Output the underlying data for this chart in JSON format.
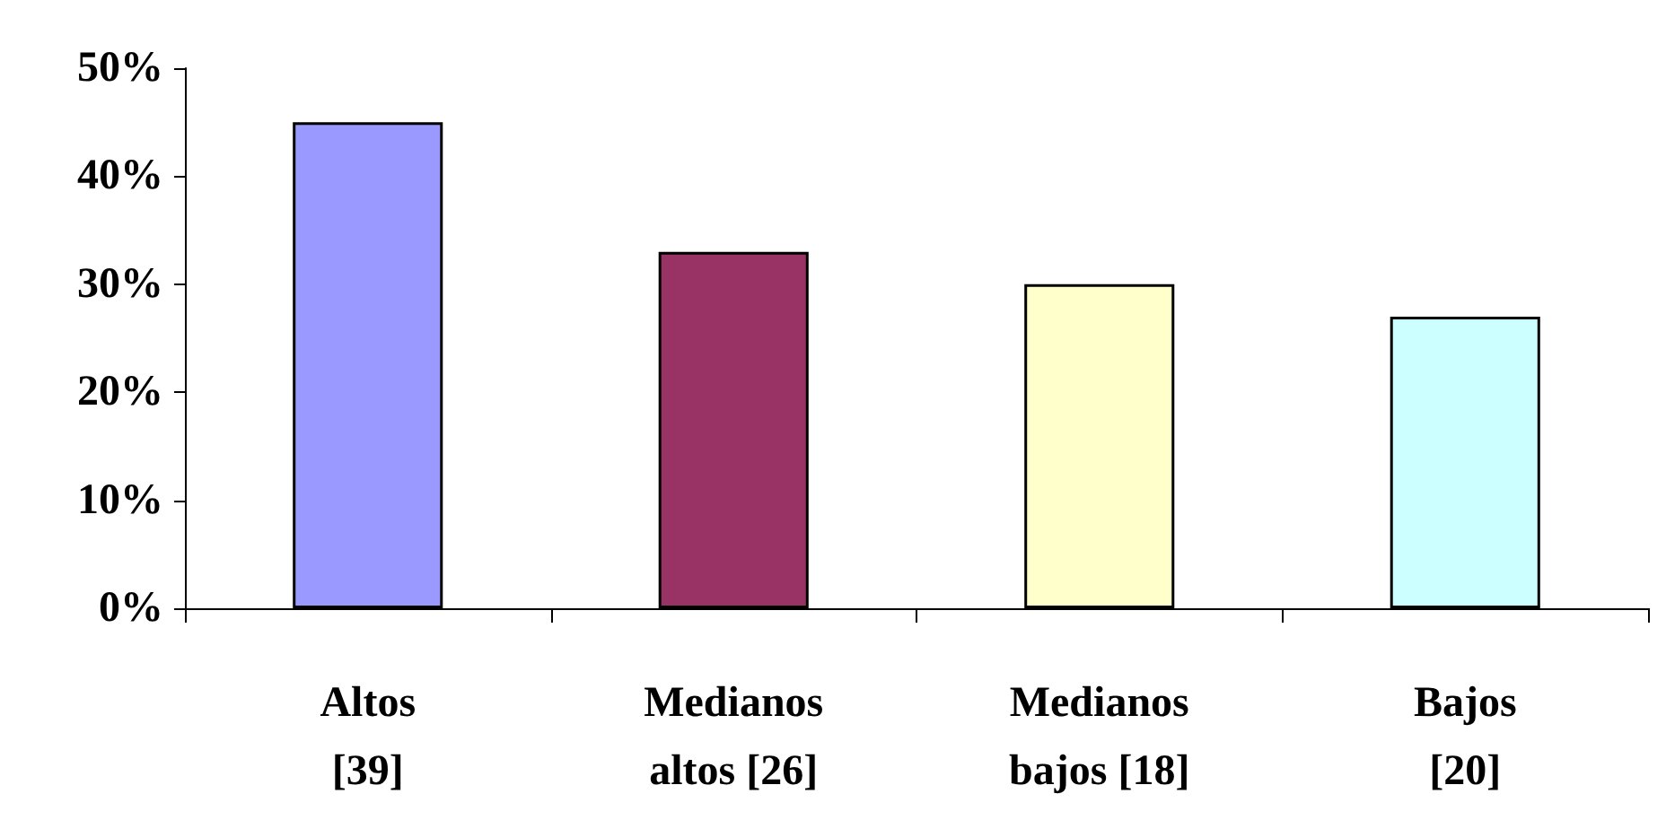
{
  "chart_data": {
    "type": "bar",
    "categories": [
      "Altos [39]",
      "Medianos altos [26]",
      "Medianos bajos [18]",
      "Bajos [20]"
    ],
    "values": [
      45,
      33,
      30,
      27
    ],
    "colors": [
      "#9999ff",
      "#993366",
      "#ffffcc",
      "#ccffff"
    ],
    "ylim": [
      0,
      50
    ],
    "yticks": [
      {
        "value": 0,
        "label": "0%"
      },
      {
        "value": 10,
        "label": "10%"
      },
      {
        "value": 20,
        "label": "20%"
      },
      {
        "value": 30,
        "label": "30%"
      },
      {
        "value": 40,
        "label": "40%"
      },
      {
        "value": 50,
        "label": "50%"
      }
    ],
    "grid": false
  }
}
